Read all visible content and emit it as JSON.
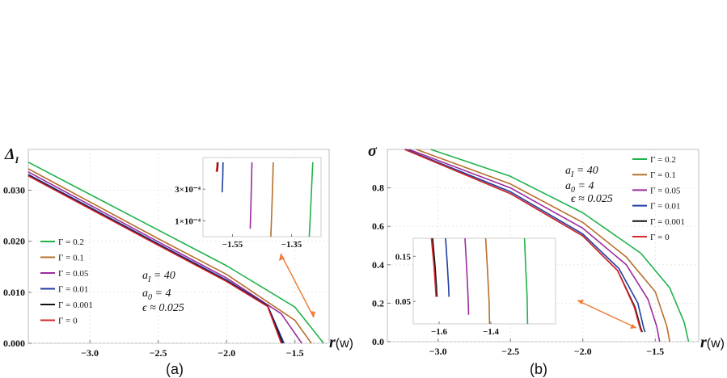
{
  "chart_data": [
    {
      "type": "line",
      "panel_label": "(a)",
      "ylabel": "Δ",
      "ylabel_sub": "I",
      "xlabel_main": "r",
      "xlabel_paren": "(w)",
      "xlim": [
        -3.45,
        -1.25
      ],
      "ylim": [
        0.0,
        0.038
      ],
      "xticks": [
        -3.0,
        -2.5,
        -2.0,
        -1.5
      ],
      "xtick_labels": [
        "−3.0",
        "−2.5",
        "−2.0",
        "−1.5"
      ],
      "yticks": [
        0.0,
        0.01,
        0.02,
        0.03
      ],
      "ytick_labels": [
        "0.000",
        "0.010",
        "0.020",
        "0.030"
      ],
      "params": [
        "a_I = 40",
        "a_0 = 4",
        "ϵ ≈ 0.025"
      ],
      "series": [
        {
          "name": "Γ = 0.2",
          "color": "#1fb24a",
          "x": [
            -3.45,
            -2.5,
            -2.0,
            -1.5,
            -1.29
          ],
          "y": [
            0.0355,
            0.0222,
            0.0152,
            0.0071,
            0.0
          ]
        },
        {
          "name": "Γ = 0.1",
          "color": "#b5702c",
          "x": [
            -3.45,
            -2.5,
            -2.0,
            -1.5,
            -1.38
          ],
          "y": [
            0.0342,
            0.0205,
            0.0135,
            0.0045,
            0.0
          ]
        },
        {
          "name": "Γ = 0.05",
          "color": "#9b2c9e",
          "x": [
            -3.45,
            -2.5,
            -2.0,
            -1.6,
            -1.45
          ],
          "y": [
            0.0336,
            0.0199,
            0.0128,
            0.0058,
            0.0
          ]
        },
        {
          "name": "Γ = 0.01",
          "color": "#1f3ea0",
          "x": [
            -3.45,
            -2.5,
            -2.0,
            -1.7,
            -1.58
          ],
          "y": [
            0.0331,
            0.0195,
            0.0124,
            0.0074,
            0.0
          ]
        },
        {
          "name": "Γ = 0.001",
          "color": "#111111",
          "x": [
            -3.45,
            -2.5,
            -2.0,
            -1.7,
            -1.59
          ],
          "y": [
            0.0329,
            0.0193,
            0.0122,
            0.0073,
            0.0
          ]
        },
        {
          "name": "Γ = 0",
          "color": "#d8262e",
          "x": [
            -3.45,
            -2.5,
            -2.0,
            -1.7,
            -1.6
          ],
          "y": [
            0.0328,
            0.0192,
            0.0121,
            0.0072,
            0.0
          ]
        }
      ],
      "inset": {
        "xlim": [
          -1.65,
          -1.25
        ],
        "ylim": [
          0.0,
          0.0005
        ],
        "xtick_labels": [
          "−1.55",
          "−1.35"
        ],
        "xticks": [
          -1.55,
          -1.35
        ],
        "ytick_labels": [
          "3×10⁻⁴",
          "1×10⁻⁴"
        ],
        "yticks": [
          0.0003,
          0.0001
        ],
        "series": [
          {
            "name": "Γ = 0.2",
            "color": "#1fb24a",
            "x": [
              -1.29,
              -1.286,
              -1.281,
              -1.278
            ],
            "y": [
              0.0,
              0.00015,
              0.00035,
              0.00047
            ]
          },
          {
            "name": "Γ = 0.1",
            "color": "#b5702c",
            "x": [
              -1.42,
              -1.417,
              -1.414,
              -1.412
            ],
            "y": [
              0.0,
              0.00015,
              0.00032,
              0.00047
            ]
          },
          {
            "name": "Γ = 0.05",
            "color": "#9b2c9e",
            "x": [
              -1.49,
              -1.488,
              -1.486,
              -1.484
            ],
            "y": [
              5e-05,
              0.00017,
              0.00032,
              0.00047
            ]
          },
          {
            "name": "Γ = 0.01",
            "color": "#1f3ea0",
            "x": [
              -1.585,
              -1.583,
              -1.582
            ],
            "y": [
              0.00028,
              0.00038,
              0.00047
            ]
          },
          {
            "name": "Γ = 0.001",
            "color": "#111111",
            "x": [
              -1.602,
              -1.6,
              -1.599
            ],
            "y": [
              0.00041,
              0.00044,
              0.00047
            ]
          },
          {
            "name": "Γ = 0",
            "color": "#d8262e",
            "x": [
              -1.605,
              -1.603,
              -1.602
            ],
            "y": [
              0.00041,
              0.00044,
              0.00047
            ]
          }
        ]
      }
    },
    {
      "type": "line",
      "panel_label": "(b)",
      "ylabel": "σ",
      "xlabel_main": "r",
      "xlabel_paren": "(w)",
      "xlim": [
        -3.35,
        -1.2
      ],
      "ylim": [
        0.0,
        1.0
      ],
      "xticks": [
        -3.0,
        -2.5,
        -2.0,
        -1.5
      ],
      "xtick_labels": [
        "−3.0",
        "−2.5",
        "−2.0",
        "−1.5"
      ],
      "yticks": [
        0.0,
        0.2,
        0.4,
        0.6,
        0.8
      ],
      "ytick_labels": [
        "0.0",
        "0.2",
        "0.4",
        "0.6",
        "0.8"
      ],
      "params": [
        "a_I = 40",
        "a_0 = 4",
        "ϵ ≈ 0.025"
      ],
      "series": [
        {
          "name": "Γ = 0.2",
          "color": "#1fb24a",
          "x": [
            -3.05,
            -2.5,
            -2.0,
            -1.6,
            -1.4,
            -1.3,
            -1.27
          ],
          "y": [
            1.0,
            0.86,
            0.67,
            0.46,
            0.28,
            0.1,
            0.0
          ]
        },
        {
          "name": "Γ = 0.1",
          "color": "#b5702c",
          "x": [
            -3.15,
            -2.5,
            -2.0,
            -1.7,
            -1.5,
            -1.42,
            -1.4
          ],
          "y": [
            1.0,
            0.82,
            0.62,
            0.44,
            0.26,
            0.08,
            0.0
          ]
        },
        {
          "name": "Γ = 0.05",
          "color": "#9b2c9e",
          "x": [
            -3.2,
            -2.5,
            -2.0,
            -1.7,
            -1.55,
            -1.49,
            -1.47
          ],
          "y": [
            1.0,
            0.8,
            0.59,
            0.4,
            0.22,
            0.08,
            0.0
          ]
        },
        {
          "name": "Γ = 0.01",
          "color": "#1f3ea0",
          "x": [
            -3.22,
            -2.5,
            -2.0,
            -1.75,
            -1.62,
            -1.58,
            -1.57
          ],
          "y": [
            1.0,
            0.78,
            0.56,
            0.38,
            0.2,
            0.07,
            0.05
          ]
        },
        {
          "name": "Γ = 0.001",
          "color": "#111111",
          "x": [
            -3.23,
            -2.5,
            -2.0,
            -1.76,
            -1.64,
            -1.6,
            -1.59
          ],
          "y": [
            1.0,
            0.77,
            0.55,
            0.37,
            0.18,
            0.07,
            0.05
          ]
        },
        {
          "name": "Γ = 0",
          "color": "#d8262e",
          "x": [
            -3.23,
            -2.5,
            -2.0,
            -1.76,
            -1.645,
            -1.605,
            -1.595
          ],
          "y": [
            1.0,
            0.77,
            0.55,
            0.37,
            0.18,
            0.07,
            0.05
          ]
        }
      ],
      "inset": {
        "xlim": [
          -1.7,
          -1.15
        ],
        "ylim": [
          0.0,
          0.19
        ],
        "xtick_labels": [
          "−1.6",
          "−1.4"
        ],
        "xticks": [
          -1.6,
          -1.4
        ],
        "ytick_labels": [
          "0.15",
          "0.05"
        ],
        "yticks": [
          0.15,
          0.05
        ],
        "series": [
          {
            "name": "Γ = 0.2",
            "color": "#1fb24a",
            "x": [
              -1.27,
              -1.265,
              -1.26,
              -1.258
            ],
            "y": [
              0.19,
              0.12,
              0.06,
              0.0
            ]
          },
          {
            "name": "Γ = 0.1",
            "color": "#b5702c",
            "x": [
              -1.42,
              -1.413,
              -1.407,
              -1.405
            ],
            "y": [
              0.19,
              0.12,
              0.05,
              0.0
            ]
          },
          {
            "name": "Γ = 0.05",
            "color": "#9b2c9e",
            "x": [
              -1.5,
              -1.493,
              -1.488,
              -1.486
            ],
            "y": [
              0.19,
              0.12,
              0.06,
              0.02
            ]
          },
          {
            "name": "Γ = 0.01",
            "color": "#1f3ea0",
            "x": [
              -1.575,
              -1.568,
              -1.563,
              -1.562
            ],
            "y": [
              0.19,
              0.13,
              0.08,
              0.06
            ]
          },
          {
            "name": "Γ = 0.001",
            "color": "#111111",
            "x": [
              -1.625,
              -1.616,
              -1.61,
              -1.608
            ],
            "y": [
              0.19,
              0.13,
              0.08,
              0.06
            ]
          },
          {
            "name": "Γ = 0",
            "color": "#d8262e",
            "x": [
              -1.63,
              -1.62,
              -1.614,
              -1.612
            ],
            "y": [
              0.19,
              0.13,
              0.08,
              0.06
            ]
          }
        ]
      }
    }
  ]
}
